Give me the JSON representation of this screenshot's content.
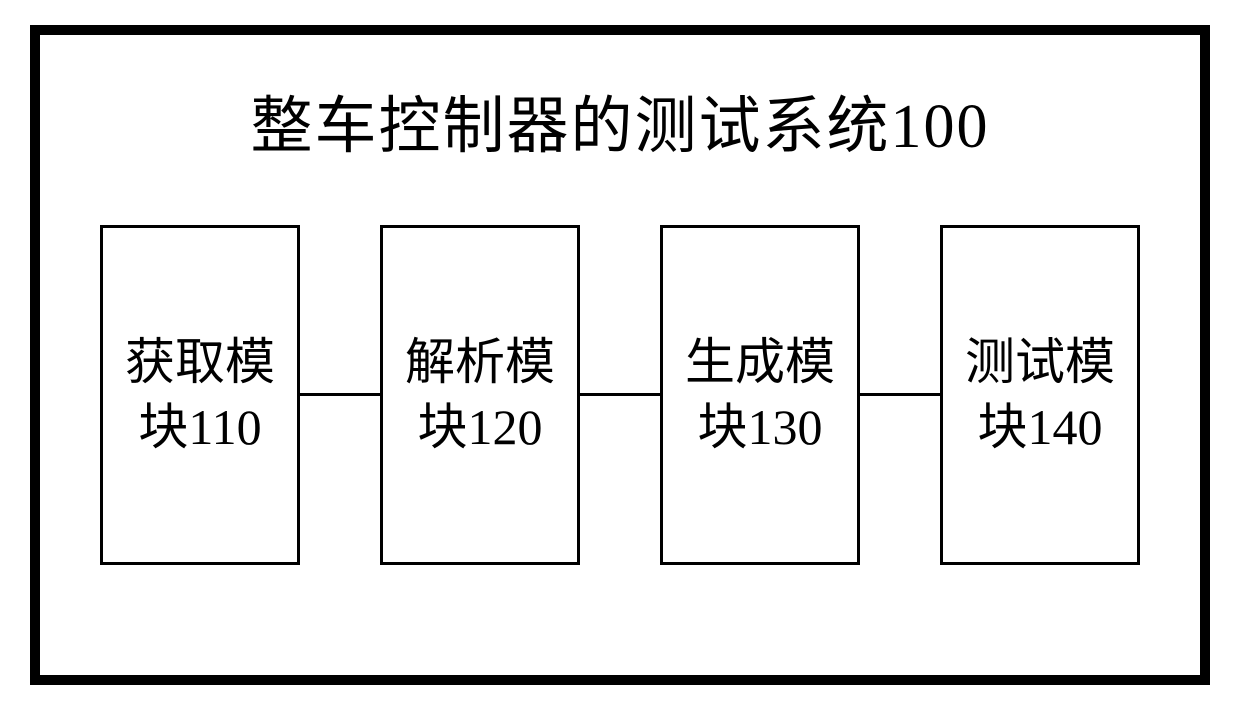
{
  "diagram": {
    "type": "flowchart",
    "title": "整车控制器的测试系统100",
    "title_fontsize": 62,
    "background_color": "#ffffff",
    "border_color": "#000000",
    "border_width": 10,
    "module_border_width": 3,
    "module_fontsize": 50,
    "connector_width": 80,
    "connector_height": 3,
    "modules": [
      {
        "label": "获取模块110",
        "id": 110
      },
      {
        "label": "解析模块120",
        "id": 120
      },
      {
        "label": "生成模块130",
        "id": 130
      },
      {
        "label": "测试模块140",
        "id": 140
      }
    ]
  }
}
